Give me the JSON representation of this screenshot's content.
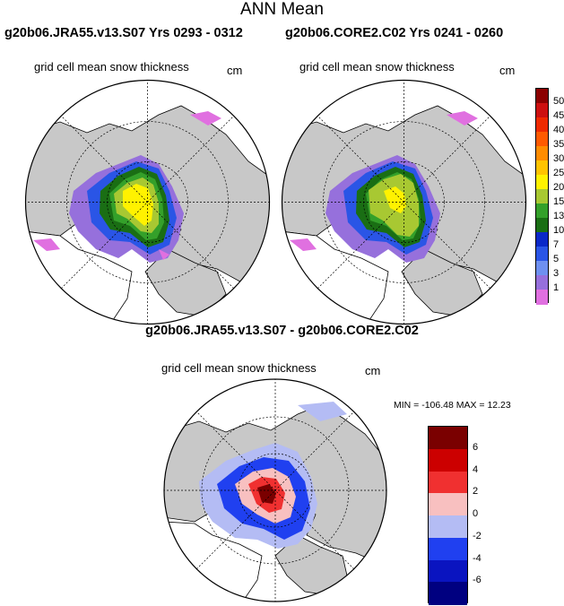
{
  "figure": {
    "title": "ANN Mean",
    "panel_left": {
      "run": "g20b06.JRA55.v13.S07  Yrs 0293 - 0312",
      "variable": "grid cell mean snow thickness",
      "units": "cm"
    },
    "panel_right": {
      "run": "g20b06.CORE2.C02  Yrs 0241 - 0260",
      "variable": "grid cell mean snow thickness",
      "units": "cm"
    },
    "panel_diff": {
      "title": "g20b06.JRA55.v13.S07 - g20b06.CORE2.C02",
      "variable": "grid cell mean snow thickness",
      "units": "cm",
      "minmax": "MIN = -106.48 MAX =  12.23"
    }
  },
  "colorbar_main": {
    "labels": [
      "50",
      "45",
      "40",
      "35",
      "30",
      "25",
      "20",
      "15",
      "13",
      "10",
      "7",
      "5",
      "3",
      "1"
    ],
    "colors": [
      "#8b0000",
      "#cc1010",
      "#ee2a00",
      "#ff5a00",
      "#ff8c00",
      "#ffc400",
      "#fff200",
      "#a8c832",
      "#34a02a",
      "#1a6e14",
      "#0a28c8",
      "#2a55e6",
      "#6e90f0",
      "#9670dc",
      "#e070e0"
    ]
  },
  "colorbar_diff": {
    "labels": [
      "6",
      "4",
      "2",
      "0",
      "-2",
      "-4",
      "-6"
    ],
    "colors": [
      "#7a0000",
      "#cc0000",
      "#f03030",
      "#f8c0c0",
      "#b4bcf4",
      "#2040f0",
      "#0a14c0",
      "#000080"
    ]
  }
}
